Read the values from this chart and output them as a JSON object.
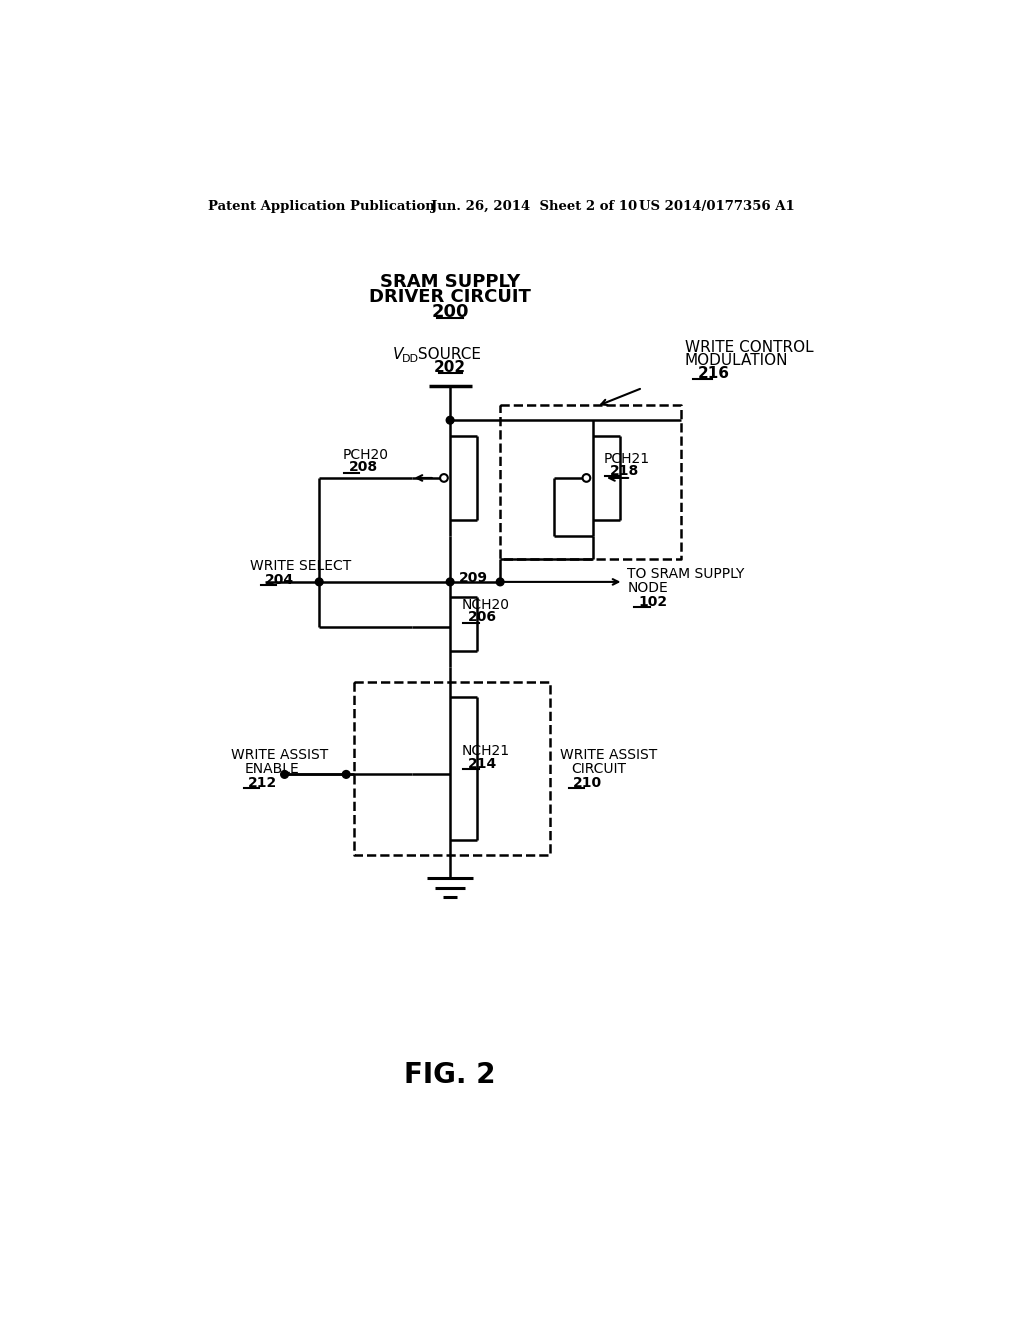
{
  "bg_color": "#ffffff",
  "line_color": "#000000",
  "header_left": "Patent Application Publication",
  "header_center": "Jun. 26, 2014  Sheet 2 of 10",
  "header_right": "US 2014/0177356 A1",
  "fig_label": "FIG. 2",
  "title_line1": "SRAM SUPPLY",
  "title_line2": "DRIVER CIRCUIT",
  "title_num": "200",
  "vdd_num": "202",
  "write_ctrl_line1": "WRITE CONTROL",
  "write_ctrl_line2": "MODULATION",
  "write_ctrl_num": "216",
  "pch21_label": "PCH21",
  "pch21_num": "218",
  "pch20_label": "PCH20",
  "pch20_num": "208",
  "nch20_label": "NCH20",
  "nch20_num": "206",
  "nch21_label": "NCH21",
  "nch21_num": "214",
  "node209": "209",
  "write_select_line1": "WRITE SELECT",
  "write_select_num": "204",
  "write_assist_enable_line1": "WRITE ASSIST",
  "write_assist_enable_line2": "ENABLE",
  "write_assist_enable_num": "212",
  "write_assist_circuit_line1": "WRITE ASSIST",
  "write_assist_circuit_line2": "CIRCUIT",
  "write_assist_circuit_num": "210",
  "to_sram_line1": "TO SRAM SUPPLY",
  "to_sram_line2": "NODE",
  "to_sram_num": "102"
}
